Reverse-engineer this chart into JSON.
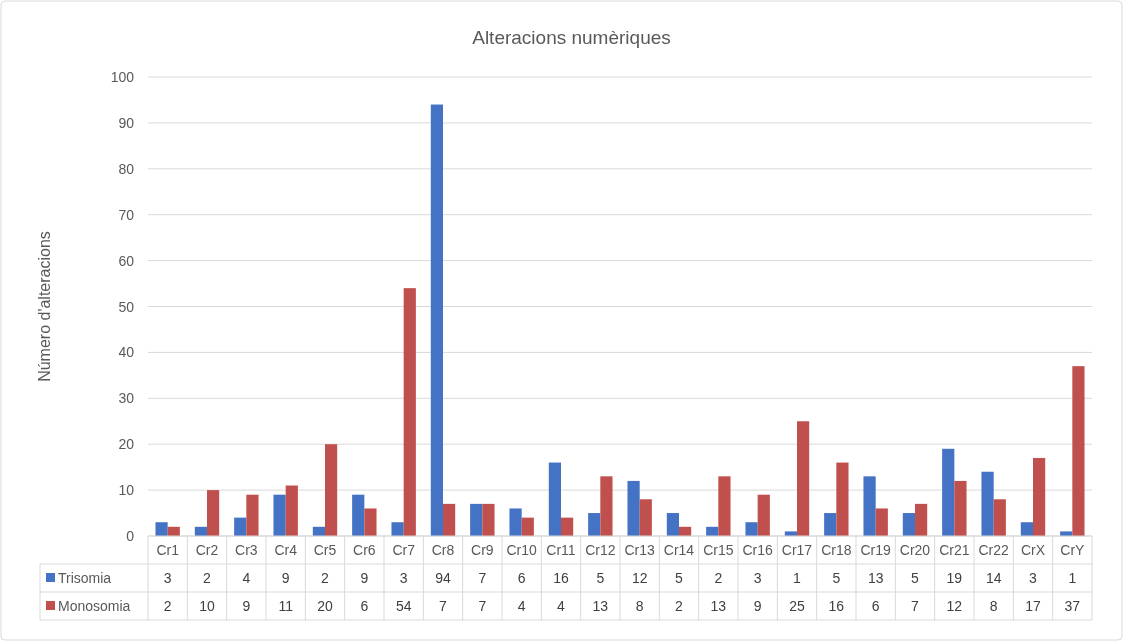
{
  "chart_data": {
    "type": "bar",
    "title": "Alteracions numèriques",
    "ylabel": "Número d'alteracions",
    "categories": [
      "Cr1",
      "Cr2",
      "Cr3",
      "Cr4",
      "Cr5",
      "Cr6",
      "Cr7",
      "Cr8",
      "Cr9",
      "Cr10",
      "Cr11",
      "Cr12",
      "Cr13",
      "Cr14",
      "Cr15",
      "Cr16",
      "Cr17",
      "Cr18",
      "Cr19",
      "Cr20",
      "Cr21",
      "Cr22",
      "CrX",
      "CrY"
    ],
    "series": [
      {
        "name": "Trisomia",
        "color": "#4472c4",
        "values": [
          3,
          2,
          4,
          9,
          2,
          9,
          3,
          94,
          7,
          6,
          16,
          5,
          12,
          5,
          2,
          3,
          1,
          5,
          13,
          5,
          19,
          14,
          3,
          1
        ]
      },
      {
        "name": "Monosomia",
        "color": "#c0504d",
        "values": [
          2,
          10,
          9,
          11,
          20,
          6,
          54,
          7,
          7,
          4,
          4,
          13,
          8,
          2,
          13,
          9,
          25,
          16,
          6,
          7,
          12,
          8,
          17,
          37
        ]
      }
    ],
    "ylim": [
      0,
      100
    ],
    "yticks": [
      0,
      10,
      20,
      30,
      40,
      50,
      60,
      70,
      80,
      90,
      100
    ],
    "grid": "y",
    "legend": "bottom",
    "data_labels": true
  }
}
